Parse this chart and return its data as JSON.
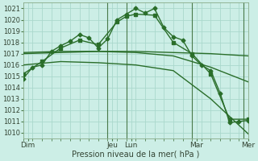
{
  "xlabel": "Pression niveau de la mer( hPa )",
  "bg_color": "#cceee6",
  "grid_color": "#aad8cc",
  "line_color": "#2a6e2a",
  "vline_color": "#4a7a4a",
  "ylim": [
    1009.5,
    1021.5
  ],
  "yticks": [
    1010,
    1011,
    1012,
    1013,
    1014,
    1015,
    1016,
    1017,
    1018,
    1019,
    1020,
    1021
  ],
  "xlim": [
    0,
    24
  ],
  "day_labels": [
    "Dim",
    "",
    "Jeu",
    "Lun",
    "",
    "Mar",
    "",
    "Mer"
  ],
  "xtick_labels": [
    "Dim",
    "Jeu",
    "Lun",
    "Mar",
    "Mer"
  ],
  "xtick_positions": [
    0.5,
    9.5,
    11.5,
    18.5,
    24
  ],
  "vline_positions": [
    9,
    11,
    18,
    23.5
  ],
  "series": [
    {
      "x": [
        0,
        1,
        2,
        3,
        4,
        5,
        6,
        7,
        8,
        9,
        10,
        11,
        12,
        13,
        14,
        15,
        16,
        17,
        18,
        19,
        20,
        21,
        22,
        23,
        24
      ],
      "y": [
        1014.8,
        1015.8,
        1016.0,
        1017.2,
        1017.7,
        1018.1,
        1018.7,
        1018.4,
        1017.5,
        1018.3,
        1020.0,
        1020.5,
        1021.0,
        1020.6,
        1021.0,
        1019.3,
        1018.5,
        1018.2,
        1016.8,
        1016.0,
        1015.5,
        1013.5,
        1010.9,
        1011.0,
        1011.1
      ],
      "marker": "D",
      "markersize": 2.5,
      "lw": 1.0
    },
    {
      "x": [
        0,
        2,
        4,
        6,
        8,
        10,
        11,
        12,
        14,
        16,
        18,
        20,
        22,
        24
      ],
      "y": [
        1015.2,
        1016.3,
        1017.5,
        1018.2,
        1017.8,
        1019.8,
        1020.3,
        1020.5,
        1020.4,
        1018.0,
        1017.0,
        1015.2,
        1011.2,
        1011.2
      ],
      "marker": "s",
      "markersize": 2.2,
      "lw": 1.0
    },
    {
      "x": [
        0,
        4,
        8,
        12,
        16,
        20,
        24
      ],
      "y": [
        1017.1,
        1017.2,
        1017.2,
        1017.2,
        1017.1,
        1017.0,
        1016.8
      ],
      "marker": null,
      "markersize": 0,
      "lw": 1.0
    },
    {
      "x": [
        0,
        4,
        8,
        12,
        16,
        20,
        24
      ],
      "y": [
        1017.0,
        1017.1,
        1017.2,
        1017.1,
        1016.8,
        1015.8,
        1014.5
      ],
      "marker": null,
      "markersize": 0,
      "lw": 1.0
    },
    {
      "x": [
        0,
        4,
        8,
        12,
        16,
        20,
        24
      ],
      "y": [
        1016.0,
        1016.3,
        1016.2,
        1016.0,
        1015.5,
        1013.0,
        1009.9
      ],
      "marker": null,
      "markersize": 0,
      "lw": 1.0
    }
  ]
}
